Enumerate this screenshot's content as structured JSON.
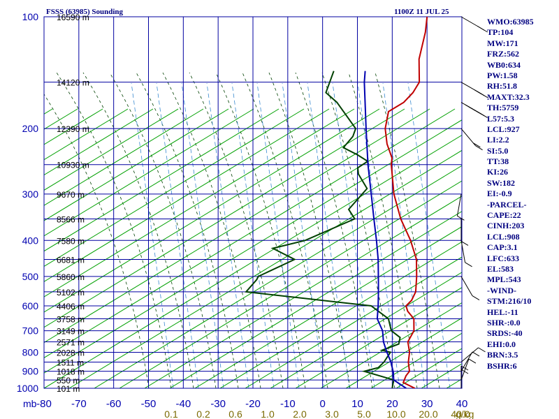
{
  "chart_data": {
    "type": "skew-t",
    "title": "FSSS (63985) Sounding",
    "valid_time": "1100Z 11 JUL 25",
    "pressure_unit": "mb",
    "mixing_ratio_unit": "g/kg",
    "temperature_range": [
      -80,
      40
    ],
    "pressure_range": [
      1000,
      100
    ],
    "pressure_ticks": [
      100,
      200,
      300,
      400,
      500,
      600,
      700,
      800,
      900,
      1000
    ],
    "temperature_ticks": [
      -80,
      -70,
      -60,
      -50,
      -40,
      -30,
      -20,
      -10,
      0,
      10,
      20,
      30,
      40
    ],
    "temperature_tick_labels": [
      "-80",
      "-70",
      "-60",
      "-50",
      "-40",
      "-30",
      "-20",
      "-10",
      "0",
      "10",
      "20",
      "30",
      "40"
    ],
    "mixing_ratio_labels": [
      "0.1",
      "0.2",
      "0.6",
      "1.0",
      "2.0",
      "3.0",
      "5.0",
      "10.0",
      "20.0",
      "40.0"
    ],
    "height_labels": [
      {
        "p": 100,
        "label": "16590 m"
      },
      {
        "p": 150,
        "label": "14120 m"
      },
      {
        "p": 200,
        "label": "12390 m"
      },
      {
        "p": 250,
        "label": "10930 m"
      },
      {
        "p": 300,
        "label": "9670 m"
      },
      {
        "p": 350,
        "label": "8566 m"
      },
      {
        "p": 400,
        "label": "7580 m"
      },
      {
        "p": 450,
        "label": "6681 m"
      },
      {
        "p": 500,
        "label": "5860 m"
      },
      {
        "p": 550,
        "label": "5102 m"
      },
      {
        "p": 600,
        "label": "4406 m"
      },
      {
        "p": 650,
        "label": "3758 m"
      },
      {
        "p": 700,
        "label": "3149 m"
      },
      {
        "p": 750,
        "label": "2571 m"
      },
      {
        "p": 800,
        "label": "2028 m"
      },
      {
        "p": 850,
        "label": "1511 m"
      },
      {
        "p": 900,
        "label": "1018 m"
      },
      {
        "p": 950,
        "label": "550 m"
      },
      {
        "p": 1000,
        "label": "101 m"
      }
    ],
    "series": [
      {
        "name": "Temperature",
        "color": "#c00000",
        "points": [
          [
            1000,
            26.5
          ],
          [
            965,
            21.5
          ],
          [
            925,
            20.3
          ],
          [
            900,
            20.0
          ],
          [
            850,
            17.0
          ],
          [
            800,
            14.5
          ],
          [
            750,
            11.0
          ],
          [
            700,
            9.5
          ],
          [
            650,
            6.0
          ],
          [
            620,
            2.0
          ],
          [
            600,
            0.0
          ],
          [
            580,
            0.0
          ],
          [
            550,
            -1.3
          ],
          [
            500,
            -5.5
          ],
          [
            450,
            -10.5
          ],
          [
            400,
            -17.7
          ],
          [
            350,
            -26.8
          ],
          [
            300,
            -36.0
          ],
          [
            250,
            -45.3
          ],
          [
            240,
            -47.0
          ],
          [
            220,
            -52.5
          ],
          [
            200,
            -57.5
          ],
          [
            180,
            -61.5
          ],
          [
            170,
            -59.8
          ],
          [
            160,
            -60.0
          ],
          [
            150,
            -61.2
          ],
          [
            130,
            -68.0
          ],
          [
            110,
            -74.0
          ],
          [
            100,
            -78.0
          ]
        ]
      },
      {
        "name": "Dewpoint",
        "color": "#004000",
        "points": [
          [
            1000,
            20.0
          ],
          [
            950,
            18.0
          ],
          [
            900,
            7.0
          ],
          [
            880,
            10.0
          ],
          [
            850,
            10.0
          ],
          [
            800,
            9.0
          ],
          [
            790,
            6.0
          ],
          [
            760,
            9.0
          ],
          [
            730,
            7.5
          ],
          [
            700,
            3.0
          ],
          [
            650,
            -1.3
          ],
          [
            600,
            -10.0
          ],
          [
            550,
            -50.0
          ],
          [
            510,
            -50.5
          ],
          [
            500,
            -51.0
          ],
          [
            450,
            -45.5
          ],
          [
            420,
            -55.0
          ],
          [
            400,
            -48.0
          ],
          [
            350,
            -40.0
          ],
          [
            330,
            -44.5
          ],
          [
            290,
            -45.3
          ],
          [
            265,
            -52.0
          ],
          [
            255,
            -54.0
          ],
          [
            245,
            -53.0
          ],
          [
            235,
            -58.0
          ],
          [
            225,
            -64.0
          ],
          [
            210,
            -64.5
          ],
          [
            200,
            -66.0
          ],
          [
            170,
            -79.0
          ],
          [
            160,
            -85.0
          ],
          [
            140,
            -89.0
          ]
        ]
      },
      {
        "name": "Parcel",
        "color": "#0000b0",
        "points": [
          [
            1000,
            24.0
          ],
          [
            950,
            18.0
          ],
          [
            908,
            15.8
          ],
          [
            850,
            12.0
          ],
          [
            800,
            8.0
          ],
          [
            750,
            4.0
          ],
          [
            700,
            0.5
          ],
          [
            650,
            -4.5
          ],
          [
            600,
            -8.0
          ],
          [
            550,
            -12.0
          ],
          [
            500,
            -16.5
          ],
          [
            450,
            -21.5
          ],
          [
            400,
            -27.5
          ],
          [
            350,
            -34.5
          ],
          [
            300,
            -42.5
          ],
          [
            250,
            -52.0
          ],
          [
            200,
            -63.0
          ],
          [
            150,
            -77.0
          ],
          [
            140,
            -80.0
          ]
        ]
      }
    ],
    "wind_barbs": [
      {
        "p": 1000,
        "dir_deg": 180,
        "speed_kt": 15
      },
      {
        "p": 950,
        "dir_deg": 200,
        "speed_kt": 10
      },
      {
        "p": 900,
        "dir_deg": 210,
        "speed_kt": 10
      },
      {
        "p": 850,
        "dir_deg": 230,
        "speed_kt": 10
      },
      {
        "p": 500,
        "dir_deg": 330,
        "speed_kt": 5
      },
      {
        "p": 400,
        "dir_deg": 350,
        "speed_kt": 5
      },
      {
        "p": 350,
        "dir_deg": 0,
        "speed_kt": 5
      },
      {
        "p": 300,
        "dir_deg": 10,
        "speed_kt": 5
      },
      {
        "p": 200,
        "dir_deg": 320,
        "speed_kt": 20
      },
      {
        "p": 170,
        "dir_deg": 300,
        "speed_kt": 55
      },
      {
        "p": 150,
        "dir_deg": 300,
        "speed_kt": 25
      },
      {
        "p": 100,
        "dir_deg": 300,
        "speed_kt": 15
      }
    ],
    "grid": true
  },
  "indices": [
    "WMO:63985",
    "TP:104",
    "MW:171",
    "FRZ:562",
    "WB0:634",
    "PW:1.58",
    "RH:51.8",
    "MAXT:32.3",
    "TH:5759",
    "L57:5.3",
    "LCL:927",
    "LI:2.2",
    "SI:5.0",
    "TT:38",
    "KI:26",
    "SW:182",
    "EI:-0.9",
    "-PARCEL-",
    "CAPE:22",
    "CINH:203",
    "LCL:908",
    "CAP:3.1",
    "LFC:633",
    "EL:583",
    "MPL:543",
    "-WIND-",
    "STM:216/10",
    "HEL:-11",
    "SHR-:0.0",
    "SRDS:-40",
    "EHI:0.0",
    "BRN:3.5",
    "BSHR:6"
  ],
  "colors": {
    "grid": "#0000a0",
    "dry_adiabat": "#00a000",
    "moist_adiabat": "#004000",
    "mixing_ratio": "#3a8ad0",
    "header": "#000080"
  }
}
